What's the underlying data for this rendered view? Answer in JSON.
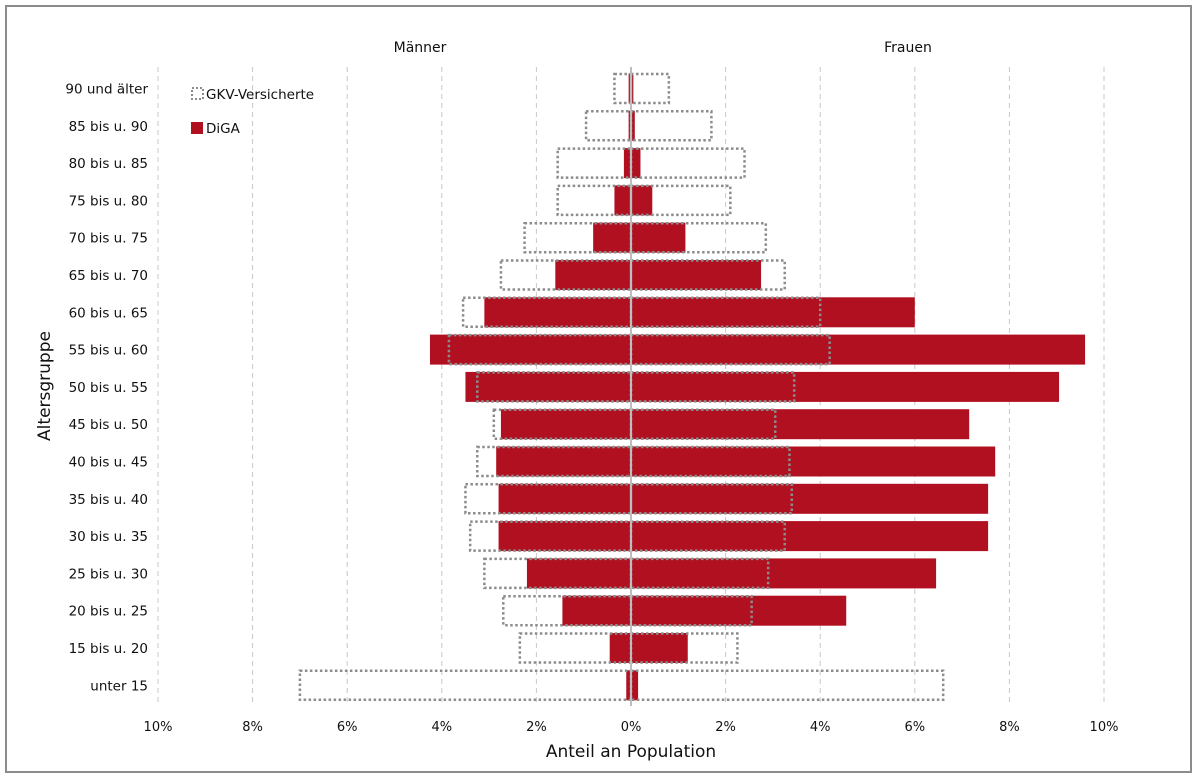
{
  "chart_data": {
    "type": "bar",
    "orientation": "horizontal",
    "layout": "population-pyramid",
    "headings": {
      "left": "Männer",
      "right": "Frauen"
    },
    "xlabel": "Anteil an Population",
    "ylabel": "Altersgruppe",
    "xlim": [
      -10,
      10
    ],
    "x_ticks": [
      "10%",
      "8%",
      "6%",
      "4%",
      "2%",
      "0%",
      "2%",
      "4%",
      "6%",
      "8%",
      "10%"
    ],
    "grid": "vertical dashed",
    "legend_position": "top-left",
    "categories": [
      "90 und älter",
      "85 bis u. 90",
      "80 bis u. 85",
      "75 bis u. 80",
      "70 bis u. 75",
      "65 bis u. 70",
      "60 bis u. 65",
      "55 bis u. 60",
      "50 bis u. 55",
      "45 bis u. 50",
      "40 bis u. 45",
      "35 bis u. 40",
      "30 bis u. 35",
      "25 bis u. 30",
      "20 bis u. 25",
      "15 bis u. 20",
      "unter 15"
    ],
    "series": [
      {
        "name": "GKV-Versicherte",
        "style": "dotted-outline",
        "color": "#8c8c8c",
        "maenner": [
          0.35,
          0.95,
          1.55,
          1.55,
          2.25,
          2.75,
          3.55,
          3.85,
          3.25,
          2.9,
          3.25,
          3.5,
          3.4,
          3.1,
          2.7,
          2.35,
          7.0
        ],
        "frauen": [
          0.8,
          1.7,
          2.4,
          2.1,
          2.85,
          3.25,
          4.0,
          4.2,
          3.45,
          3.05,
          3.35,
          3.4,
          3.25,
          2.9,
          2.55,
          2.25,
          6.6
        ]
      },
      {
        "name": "DiGA",
        "style": "filled",
        "color": "#b01020",
        "maenner": [
          0.05,
          0.05,
          0.15,
          0.35,
          0.8,
          1.6,
          3.1,
          4.25,
          3.5,
          2.75,
          2.85,
          2.8,
          2.8,
          2.2,
          1.45,
          0.45,
          0.1
        ],
        "frauen": [
          0.05,
          0.08,
          0.2,
          0.45,
          1.15,
          2.75,
          6.0,
          9.6,
          9.05,
          7.15,
          7.7,
          7.55,
          7.55,
          6.45,
          4.55,
          1.2,
          0.15
        ]
      }
    ]
  }
}
